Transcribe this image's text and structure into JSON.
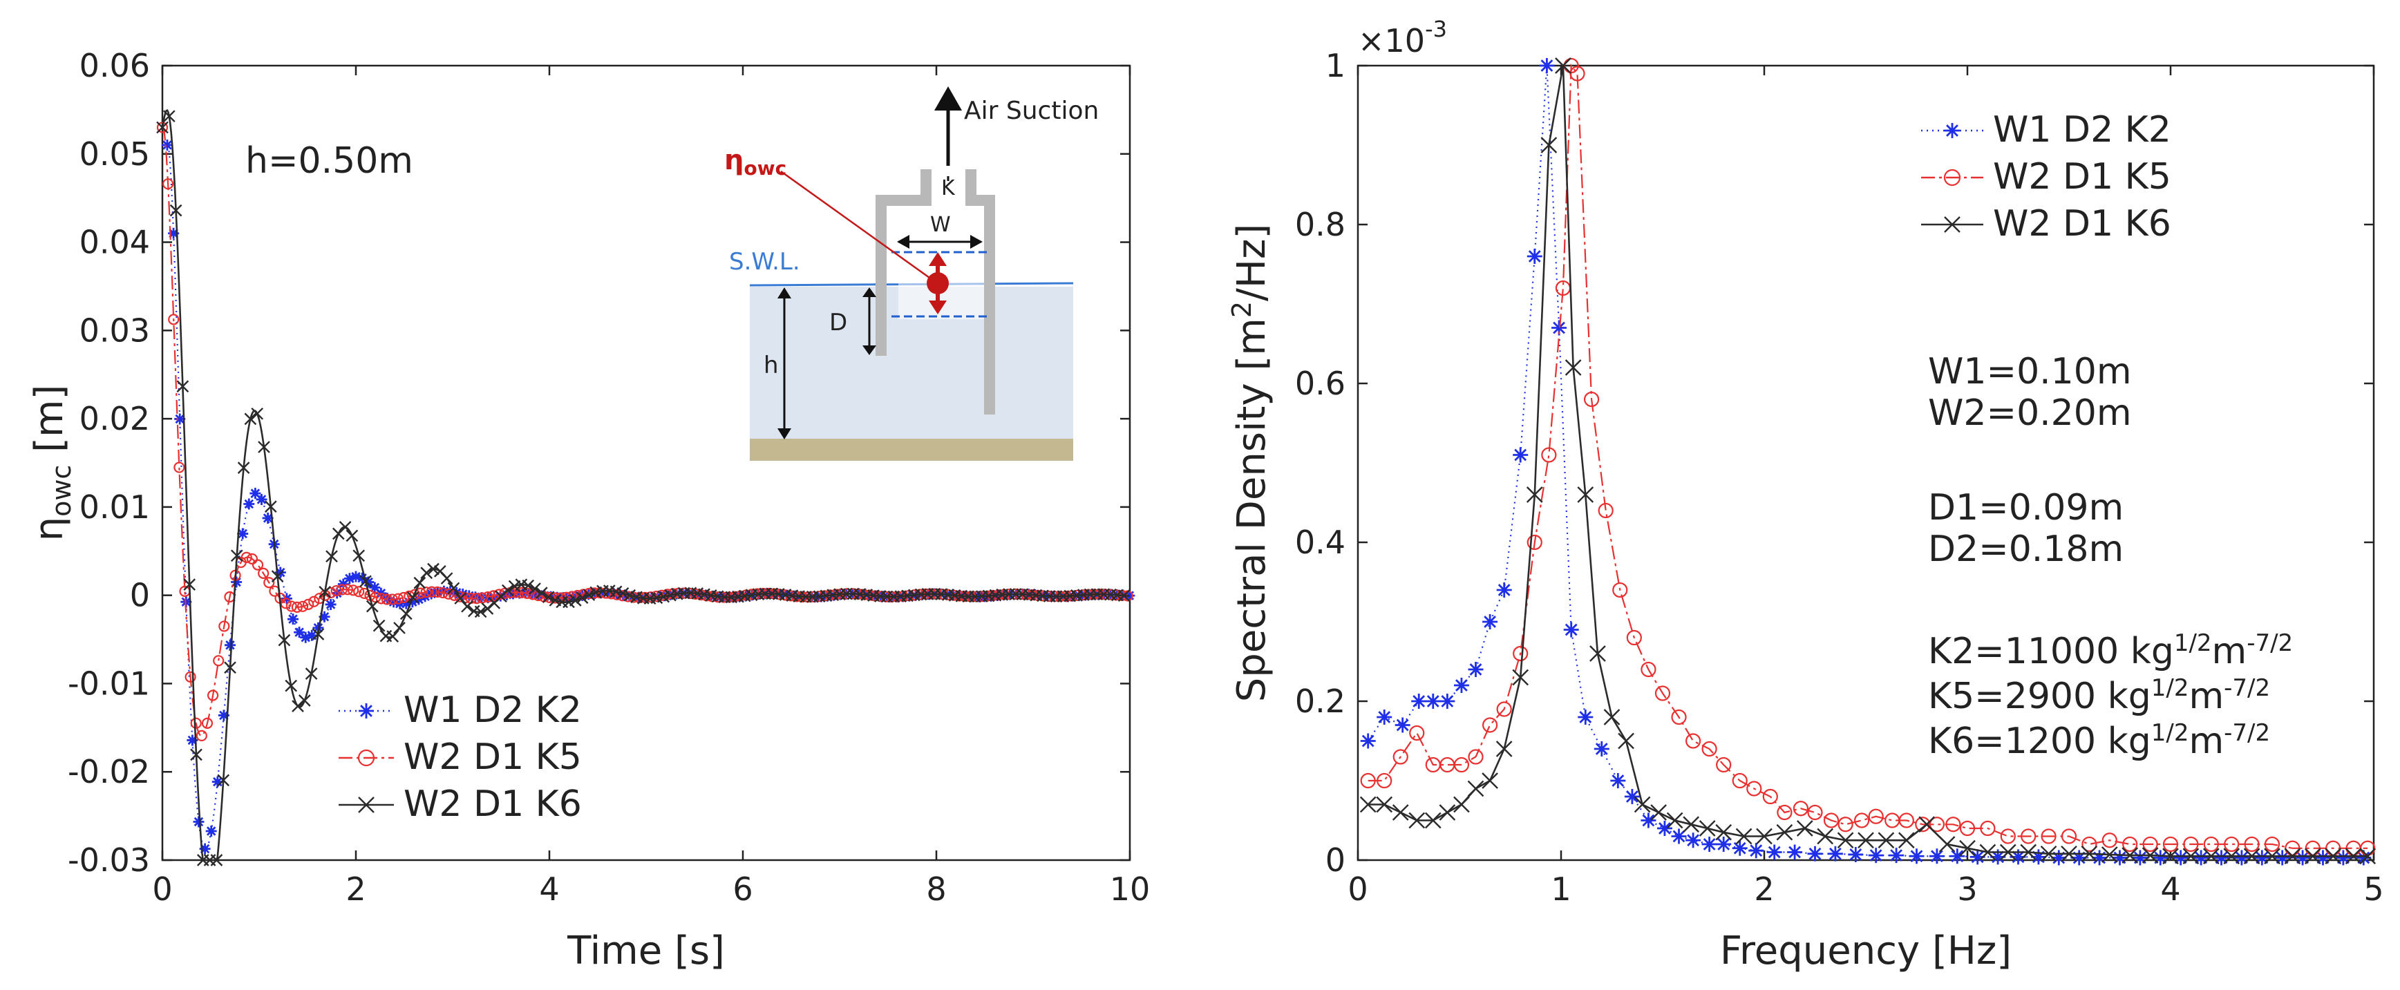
{
  "figure": {
    "panel_left": {
      "annotation": "h=0.50m",
      "inset": {
        "air_suction": "Air Suction",
        "eta_label": "η",
        "eta_sub": "owc",
        "k_label": "K",
        "w_label": "W",
        "swl_label": "S.W.L.",
        "d_label": "D",
        "h_label": "h"
      }
    },
    "panel_right": {
      "exponent_base": "×10",
      "exponent_power": "-3",
      "params": {
        "w1": "W1=0.10m",
        "w2": "W2=0.20m",
        "d1": "D1=0.09m",
        "d2": "D2=0.18m",
        "k2": "K2=11000 kg",
        "k5": "K5=2900 kg",
        "k6": "K6=1200 kg",
        "k_unit_exp1": "1/2",
        "k_unit_m": "m",
        "k_unit_exp2": "-7/2"
      }
    }
  },
  "chart_data": [
    {
      "type": "line",
      "title": "",
      "xlabel": "Time [s]",
      "ylabel_main": "η",
      "ylabel_sub": "owc",
      "ylabel_unit": " [m]",
      "xlim": [
        0,
        10
      ],
      "ylim": [
        -0.03,
        0.06
      ],
      "xticks": [
        0,
        2,
        4,
        6,
        8,
        10
      ],
      "yticks": [
        -0.03,
        -0.02,
        -0.01,
        0,
        0.01,
        0.02,
        0.03,
        0.04,
        0.05,
        0.06
      ],
      "legend_position": "bottom-left",
      "series": [
        {
          "name": "W1  D2  K2",
          "color": "#1f2fe8",
          "dash": "2,6",
          "marker": "star",
          "A": 0.062,
          "T": 1.05,
          "tau": 0.55,
          "phi": 0.55,
          "x0": 0.05,
          "y0": 0.051,
          "dt": 0.065
        },
        {
          "name": "W2  D1  K5",
          "color": "#e83030",
          "dash": "20,6,4,6",
          "marker": "circle",
          "A": 0.055,
          "T": 0.95,
          "tau": 0.35,
          "phi": 0.15,
          "x0": 0.0,
          "y0": 0.053,
          "dt": 0.058
        },
        {
          "name": "W2  D1  K6",
          "color": "#2b2b2b",
          "dash": "none",
          "marker": "x",
          "A": 0.06,
          "T": 0.93,
          "tau": 0.9,
          "phi": -0.3,
          "x0": 0.0,
          "y0": 0.053,
          "dt": 0.07
        }
      ]
    },
    {
      "type": "line",
      "title": "",
      "xlabel": "Frequency [Hz]",
      "ylabel_pre": "Spectral Density [m",
      "ylabel_sup": "2",
      "ylabel_post": "/Hz]",
      "xlim": [
        0,
        5
      ],
      "ylim": [
        0,
        1.0
      ],
      "y_scale_label": "×10^-3",
      "xticks": [
        0,
        1,
        2,
        3,
        4,
        5
      ],
      "yticks": [
        0,
        0.2,
        0.4,
        0.6,
        0.8,
        1
      ],
      "legend_position": "top-right",
      "series": [
        {
          "name": "W1  D2  K2",
          "color": "#1f2fe8",
          "dash": "2,6",
          "marker": "star",
          "x": [
            0.05,
            0.13,
            0.22,
            0.3,
            0.37,
            0.44,
            0.51,
            0.58,
            0.65,
            0.72,
            0.8,
            0.87,
            0.93,
            0.99,
            1.05,
            1.12,
            1.2,
            1.28,
            1.35,
            1.43,
            1.51,
            1.58,
            1.65,
            1.73,
            1.8,
            1.88,
            1.96,
            2.05,
            2.15,
            2.25,
            2.35,
            2.45,
            2.55,
            2.65,
            2.75,
            2.85,
            2.95,
            3.05,
            3.15,
            3.25,
            3.35,
            3.45,
            3.55,
            3.65,
            3.75,
            3.85,
            3.95,
            4.05,
            4.15,
            4.25,
            4.35,
            4.45,
            4.55,
            4.65,
            4.75,
            4.85,
            4.95
          ],
          "y": [
            0.15,
            0.18,
            0.17,
            0.2,
            0.2,
            0.2,
            0.22,
            0.24,
            0.3,
            0.34,
            0.51,
            0.76,
            1.0,
            0.67,
            0.29,
            0.18,
            0.14,
            0.1,
            0.08,
            0.05,
            0.04,
            0.03,
            0.025,
            0.02,
            0.02,
            0.015,
            0.012,
            0.01,
            0.01,
            0.008,
            0.008,
            0.007,
            0.006,
            0.006,
            0.005,
            0.005,
            0.005,
            0.004,
            0.004,
            0.004,
            0.004,
            0.003,
            0.003,
            0.003,
            0.003,
            0.003,
            0.003,
            0.003,
            0.003,
            0.003,
            0.003,
            0.003,
            0.003,
            0.003,
            0.003,
            0.003,
            0.003
          ]
        },
        {
          "name": "W2  D1  K5",
          "color": "#e83030",
          "dash": "20,6,4,6",
          "marker": "circle",
          "x": [
            0.05,
            0.13,
            0.21,
            0.29,
            0.37,
            0.44,
            0.51,
            0.58,
            0.65,
            0.72,
            0.8,
            0.87,
            0.94,
            1.01,
            1.05,
            1.08,
            1.15,
            1.22,
            1.29,
            1.36,
            1.43,
            1.5,
            1.58,
            1.65,
            1.73,
            1.8,
            1.88,
            1.95,
            2.03,
            2.1,
            2.18,
            2.25,
            2.33,
            2.4,
            2.48,
            2.55,
            2.63,
            2.7,
            2.78,
            2.85,
            2.93,
            3.0,
            3.1,
            3.2,
            3.3,
            3.4,
            3.5,
            3.6,
            3.7,
            3.8,
            3.9,
            4.0,
            4.1,
            4.2,
            4.3,
            4.4,
            4.5,
            4.6,
            4.7,
            4.8,
            4.9,
            4.97
          ],
          "y": [
            0.1,
            0.1,
            0.13,
            0.16,
            0.12,
            0.12,
            0.12,
            0.13,
            0.17,
            0.19,
            0.26,
            0.4,
            0.51,
            0.72,
            1.0,
            0.99,
            0.58,
            0.44,
            0.34,
            0.28,
            0.24,
            0.21,
            0.18,
            0.15,
            0.14,
            0.12,
            0.1,
            0.09,
            0.08,
            0.06,
            0.065,
            0.06,
            0.05,
            0.045,
            0.05,
            0.055,
            0.05,
            0.05,
            0.045,
            0.045,
            0.045,
            0.04,
            0.04,
            0.03,
            0.03,
            0.03,
            0.03,
            0.02,
            0.025,
            0.02,
            0.02,
            0.02,
            0.02,
            0.02,
            0.02,
            0.02,
            0.02,
            0.015,
            0.015,
            0.015,
            0.015,
            0.015
          ]
        },
        {
          "name": "W2  D1  K6",
          "color": "#2b2b2b",
          "dash": "none",
          "marker": "x",
          "x": [
            0.05,
            0.13,
            0.21,
            0.29,
            0.37,
            0.44,
            0.51,
            0.58,
            0.65,
            0.72,
            0.8,
            0.87,
            0.94,
            1.01,
            1.06,
            1.12,
            1.18,
            1.25,
            1.32,
            1.4,
            1.48,
            1.56,
            1.64,
            1.72,
            1.8,
            1.9,
            2.0,
            2.1,
            2.2,
            2.3,
            2.4,
            2.5,
            2.6,
            2.7,
            2.8,
            2.9,
            3.0,
            3.1,
            3.2,
            3.3,
            3.4,
            3.5,
            3.6,
            3.7,
            3.8,
            3.9,
            4.0,
            4.1,
            4.2,
            4.3,
            4.4,
            4.5,
            4.6,
            4.7,
            4.8,
            4.9,
            4.97
          ],
          "y": [
            0.07,
            0.07,
            0.06,
            0.05,
            0.05,
            0.06,
            0.07,
            0.09,
            0.1,
            0.14,
            0.23,
            0.46,
            0.9,
            1.0,
            0.62,
            0.46,
            0.26,
            0.18,
            0.15,
            0.07,
            0.06,
            0.05,
            0.045,
            0.04,
            0.035,
            0.03,
            0.03,
            0.035,
            0.04,
            0.03,
            0.025,
            0.025,
            0.025,
            0.025,
            0.045,
            0.02,
            0.015,
            0.01,
            0.01,
            0.01,
            0.008,
            0.008,
            0.008,
            0.007,
            0.006,
            0.006,
            0.005,
            0.005,
            0.005,
            0.005,
            0.005,
            0.005,
            0.005,
            0.005,
            0.005,
            0.005,
            0.005
          ]
        }
      ]
    }
  ]
}
